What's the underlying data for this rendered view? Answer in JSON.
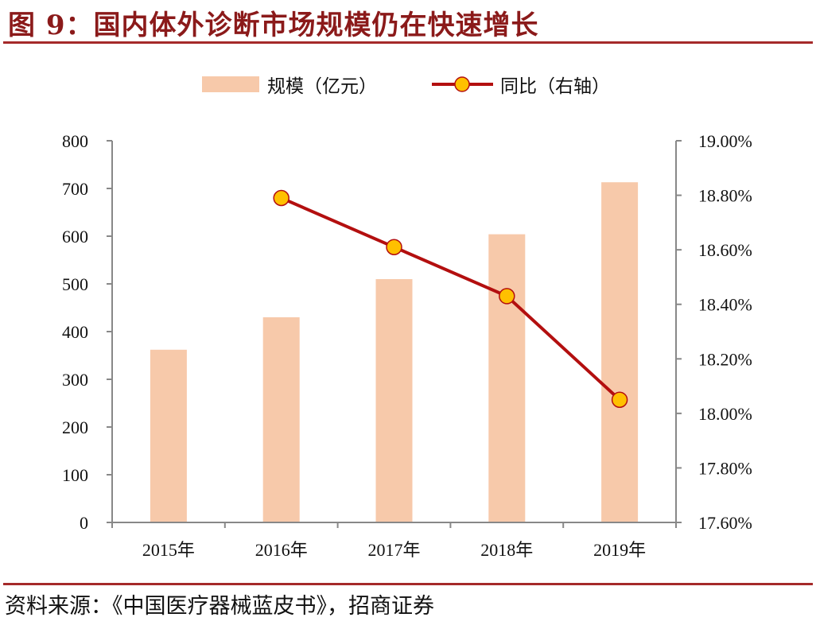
{
  "figure": {
    "title": "图 9：国内体外诊断市场规模仍在快速增长",
    "source": "资料来源：《中国医疗器械蓝皮书》，招商证券"
  },
  "chart_data": {
    "type": "bar",
    "categories": [
      "2015年",
      "2016年",
      "2017年",
      "2018年",
      "2019年"
    ],
    "series": [
      {
        "name": "规模（亿元）",
        "type": "bar",
        "axis": "left",
        "values": [
          362,
          430,
          510,
          604,
          713
        ],
        "color": "#f7c9aa"
      },
      {
        "name": "同比（右轴）",
        "type": "line",
        "axis": "right",
        "values": [
          null,
          18.79,
          18.61,
          18.43,
          18.05
        ],
        "color": "#b30f0f",
        "marker_color": "#ffc000"
      }
    ],
    "y_left": {
      "min": 0,
      "max": 800,
      "ticks": [
        0,
        100,
        200,
        300,
        400,
        500,
        600,
        700,
        800
      ]
    },
    "y_right": {
      "min": 17.6,
      "max": 19.0,
      "ticks": [
        "17.60%",
        "17.80%",
        "18.00%",
        "18.20%",
        "18.40%",
        "18.60%",
        "18.80%",
        "19.00%"
      ]
    },
    "legend": "top-center",
    "grid": false
  }
}
